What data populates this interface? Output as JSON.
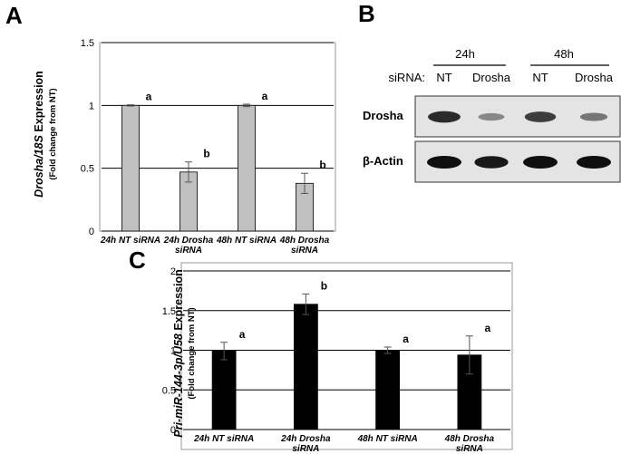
{
  "panels": {
    "a": "A",
    "b": "B",
    "c": "C"
  },
  "chart_data": [
    {
      "type": "bar",
      "panel": "A",
      "ylabel_main_italic": "Drosha/18S",
      "ylabel_main_rest": " Expression",
      "ylabel_sub": "(Fold change from NT)",
      "categories": [
        [
          "24h NT siRNA"
        ],
        [
          "24h Drosha",
          "siRNA"
        ],
        [
          "48h NT siRNA"
        ],
        [
          "48h Drosha",
          "siRNA"
        ]
      ],
      "values": [
        1.0,
        0.47,
        1.0,
        0.38
      ],
      "errors": [
        0.005,
        0.08,
        0.01,
        0.08
      ],
      "significance": [
        "a",
        "b",
        "a",
        "b"
      ],
      "ylim": [
        0,
        1.5
      ],
      "yticks": [
        "0",
        "0.5",
        "1",
        "1.5"
      ],
      "bar_color": "#c0c0c0",
      "gridlines": true
    },
    {
      "type": "bar",
      "panel": "C",
      "ylabel_main_italic": "Pri-miR-144-3p/U58",
      "ylabel_main_rest": " Expression",
      "ylabel_sub": "(Fold change from NT)",
      "categories": [
        [
          "24h NT siRNA"
        ],
        [
          "24h Drosha",
          "siRNA"
        ],
        [
          "48h NT siRNA"
        ],
        [
          "48h Drosha",
          "siRNA"
        ]
      ],
      "values": [
        0.99,
        1.58,
        1.0,
        0.94
      ],
      "errors": [
        0.11,
        0.13,
        0.04,
        0.24
      ],
      "significance": [
        "a",
        "b",
        "a",
        "a"
      ],
      "ylim": [
        0,
        2
      ],
      "yticks": [
        "0",
        "0.5",
        "1",
        "1.5",
        "2"
      ],
      "bar_color": "#000000",
      "gridlines": true
    }
  ],
  "western_blot": {
    "timepoints": [
      "24h",
      "48h"
    ],
    "sirna_label": "siRNA:",
    "lanes": [
      "NT",
      "Drosha",
      "NT",
      "Drosha"
    ],
    "rows": [
      {
        "label": "Drosha",
        "intensities": [
          0.85,
          0.35,
          0.75,
          0.45
        ]
      },
      {
        "label": "β-Actin",
        "intensities": [
          1.0,
          0.95,
          1.0,
          1.0
        ]
      }
    ]
  }
}
